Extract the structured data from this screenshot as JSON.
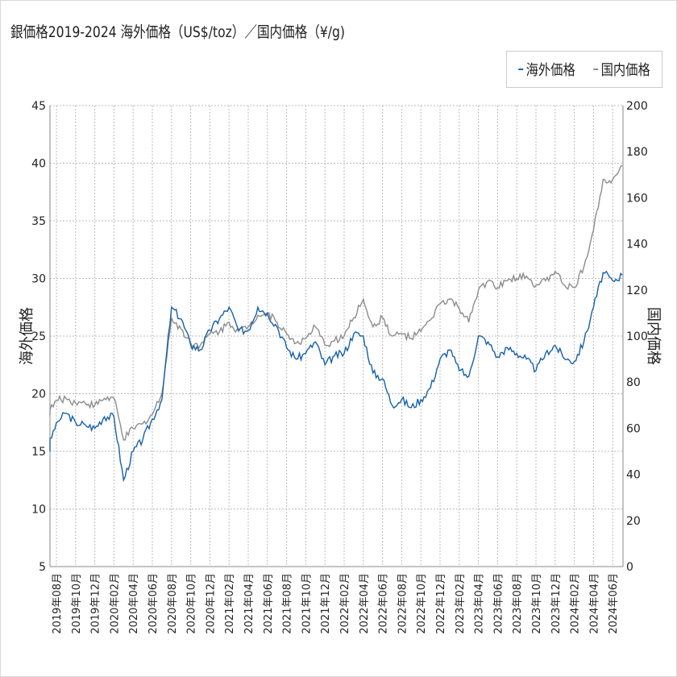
{
  "chart_data": {
    "type": "line",
    "title": "銀価格2019-2024 海外価格（US$/toz）／国内価格（¥/g)",
    "ylabel": "海外価格",
    "y2label": "国内価格",
    "ylim": [
      5,
      45
    ],
    "y2lim": [
      0,
      200
    ],
    "yticks": [
      "5",
      "10",
      "15",
      "20",
      "25",
      "30",
      "35",
      "40",
      "45"
    ],
    "y2ticks": [
      "0",
      "20",
      "40",
      "60",
      "80",
      "100",
      "120",
      "140",
      "160",
      "180",
      "200"
    ],
    "grid": true,
    "legend_position": "top-right",
    "xticks": [
      "2019年08月",
      "2019年10月",
      "2019年12月",
      "2020年02月",
      "2020年04月",
      "2020年06月",
      "2020年08月",
      "2020年10月",
      "2020年12月",
      "2021年02月",
      "2021年04月",
      "2021年06月",
      "2021年08月",
      "2021年10月",
      "2021年12月",
      "2022年02月",
      "2022年04月",
      "2022年06月",
      "2022年08月",
      "2022年10月",
      "2022年12月",
      "2023年02月",
      "2023年04月",
      "2023年06月",
      "2023年08月",
      "2023年10月",
      "2023年12月",
      "2024年02月",
      "2024年04月",
      "2024年06月"
    ],
    "x": [
      "2019-07",
      "2019-08",
      "2019-09",
      "2019-10",
      "2019-11",
      "2019-12",
      "2020-01",
      "2020-02",
      "2020-03",
      "2020-04",
      "2020-05",
      "2020-06",
      "2020-07",
      "2020-08",
      "2020-09",
      "2020-10",
      "2020-11",
      "2020-12",
      "2021-01",
      "2021-02",
      "2021-03",
      "2021-04",
      "2021-05",
      "2021-06",
      "2021-07",
      "2021-08",
      "2021-09",
      "2021-10",
      "2021-11",
      "2021-12",
      "2022-01",
      "2022-02",
      "2022-03",
      "2022-04",
      "2022-05",
      "2022-06",
      "2022-07",
      "2022-08",
      "2022-09",
      "2022-10",
      "2022-11",
      "2022-12",
      "2023-01",
      "2023-02",
      "2023-03",
      "2023-04",
      "2023-05",
      "2023-06",
      "2023-07",
      "2023-08",
      "2023-09",
      "2023-10",
      "2023-11",
      "2023-12",
      "2024-01",
      "2024-02",
      "2024-03",
      "2024-04",
      "2024-05",
      "2024-06",
      "2024-07"
    ],
    "series": [
      {
        "name": "海外価格",
        "axis": "left",
        "color": "#1560a8",
        "values": [
          15.0,
          17.5,
          18.3,
          17.5,
          17.3,
          17.0,
          18.0,
          18.0,
          12.5,
          15.0,
          16.0,
          17.8,
          19.5,
          27.5,
          26.5,
          24.2,
          23.8,
          25.5,
          26.5,
          27.5,
          25.5,
          25.5,
          27.5,
          27.0,
          25.8,
          24.0,
          23.0,
          23.5,
          24.5,
          22.5,
          23.3,
          23.5,
          25.2,
          25.0,
          21.8,
          21.3,
          19.0,
          19.5,
          18.8,
          19.5,
          20.5,
          23.0,
          23.8,
          22.0,
          21.5,
          25.0,
          24.5,
          23.2,
          24.0,
          23.5,
          23.0,
          22.0,
          23.5,
          24.2,
          23.0,
          22.8,
          24.5,
          27.5,
          30.5,
          29.8,
          30.3
        ]
      },
      {
        "name": "国内価格",
        "axis": "right",
        "color": "#8c8c8c",
        "values": [
          66,
          72,
          73,
          71,
          71,
          70,
          73,
          73,
          55,
          60,
          62,
          66,
          75,
          108,
          103,
          97,
          96,
          101,
          102,
          106,
          102,
          104,
          109,
          110,
          106,
          101,
          97,
          99,
          104,
          96,
          98,
          100,
          108,
          116,
          104,
          108,
          100,
          101,
          99,
          102,
          107,
          114,
          116,
          112,
          106,
          120,
          124,
          121,
          124,
          125,
          126,
          122,
          124,
          128,
          122,
          121,
          130,
          146,
          168,
          168,
          174
        ]
      }
    ]
  }
}
